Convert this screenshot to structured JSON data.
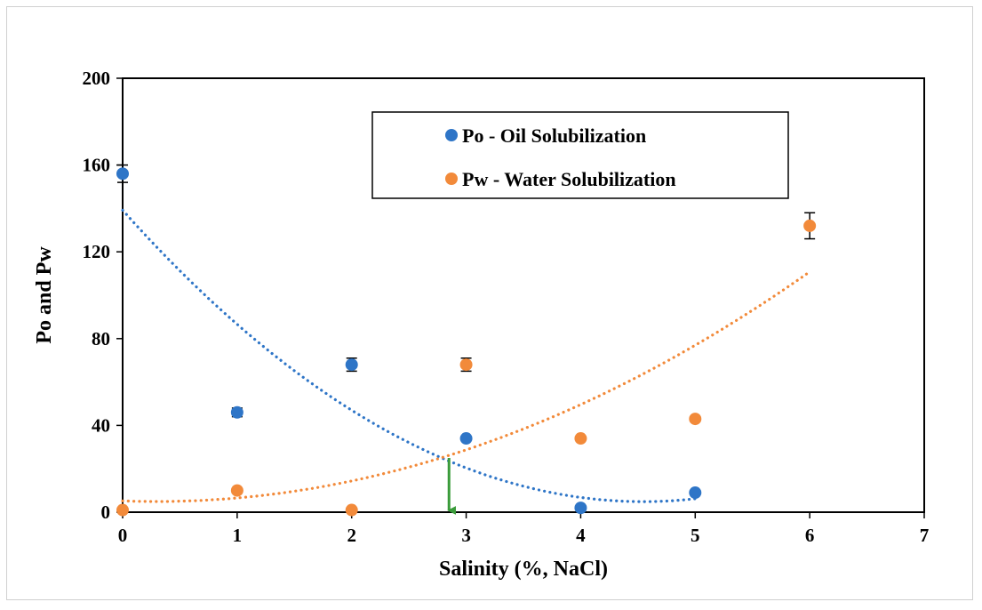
{
  "chart_data": {
    "type": "scatter",
    "title": "",
    "xlabel": "Salinity (%, NaCl)",
    "ylabel": "Po and Pw",
    "xlim": [
      0,
      7
    ],
    "ylim": [
      0,
      200
    ],
    "xticks": [
      0,
      1,
      2,
      3,
      4,
      5,
      6,
      7
    ],
    "yticks": [
      0,
      40,
      80,
      120,
      160,
      200
    ],
    "grid": false,
    "legend_position": "top-center",
    "series": [
      {
        "name": "Po - Oil Solubilization",
        "color": "#2E75C7",
        "points": [
          {
            "x": 0,
            "y": 156,
            "err": 4
          },
          {
            "x": 1,
            "y": 46,
            "err": 2
          },
          {
            "x": 2,
            "y": 68,
            "err": 3
          },
          {
            "x": 3,
            "y": 34,
            "err": 0
          },
          {
            "x": 4,
            "y": 2,
            "err": 0
          },
          {
            "x": 5,
            "y": 9,
            "err": 0
          }
        ],
        "trendline": {
          "type": "polynomial",
          "coefficients": [
            139.2,
            -59.1,
            6.5
          ],
          "x_range": [
            0,
            5
          ]
        }
      },
      {
        "name": "Pw - Water Solubilization",
        "color": "#F28A3A",
        "points": [
          {
            "x": 0,
            "y": 1,
            "err": 0
          },
          {
            "x": 1,
            "y": 10,
            "err": 0
          },
          {
            "x": 2,
            "y": 1,
            "err": 0
          },
          {
            "x": 3,
            "y": 68,
            "err": 3
          },
          {
            "x": 4,
            "y": 34,
            "err": 0
          },
          {
            "x": 5,
            "y": 43,
            "err": 1
          },
          {
            "x": 6,
            "y": 132,
            "err": 6
          }
        ],
        "trendline": {
          "type": "polynomial",
          "coefficients": [
            5.2,
            -1.9,
            3.25
          ],
          "x_range": [
            0,
            6
          ]
        }
      }
    ],
    "annotations": [
      {
        "type": "arrow",
        "color": "#3A9B3A",
        "x": 2.85,
        "y_from": 25,
        "y_to": 0
      }
    ]
  }
}
